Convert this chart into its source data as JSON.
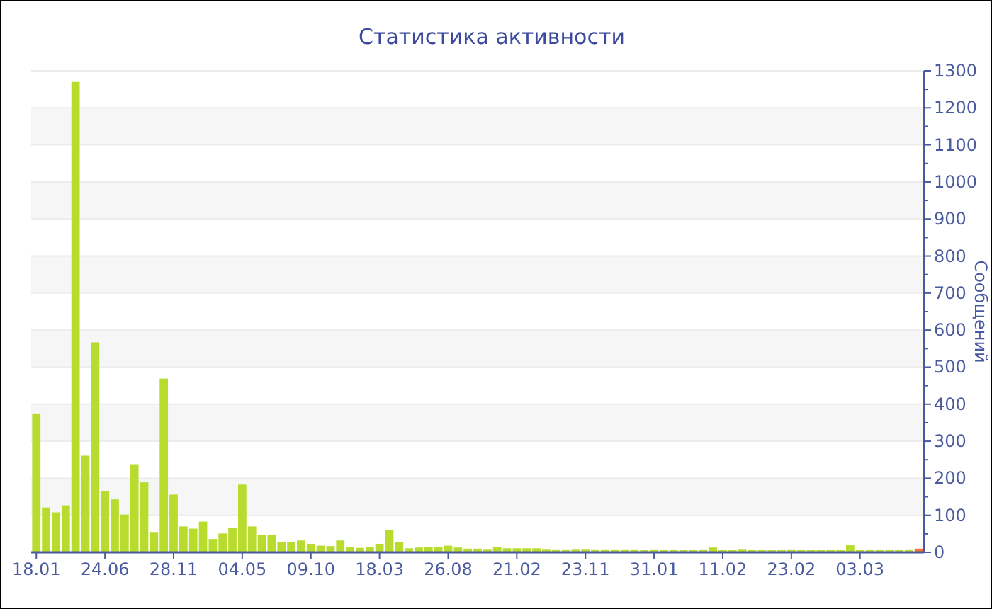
{
  "chart_data": {
    "type": "bar",
    "title": "Статистика активности",
    "ylabel": "Сообщений",
    "categories": [
      "18.01",
      null,
      null,
      null,
      null,
      null,
      null,
      "24.06",
      null,
      null,
      null,
      null,
      null,
      null,
      "28.11",
      null,
      null,
      null,
      null,
      null,
      null,
      "04.05",
      null,
      null,
      null,
      null,
      null,
      null,
      "09.10",
      null,
      null,
      null,
      null,
      null,
      null,
      "18.03",
      null,
      null,
      null,
      null,
      null,
      null,
      "26.08",
      null,
      null,
      null,
      null,
      null,
      null,
      "21.02",
      null,
      null,
      null,
      null,
      null,
      null,
      "23.11",
      null,
      null,
      null,
      null,
      null,
      null,
      "31.01",
      null,
      null,
      null,
      null,
      null,
      null,
      "11.02",
      null,
      null,
      null,
      null,
      null,
      null,
      "23.02",
      null,
      null,
      null,
      null,
      null,
      null,
      "03.03",
      null,
      null,
      null,
      null,
      null,
      null
    ],
    "values": [
      375,
      121,
      108,
      127,
      1270,
      261,
      567,
      166,
      143,
      102,
      238,
      189,
      55,
      469,
      156,
      70,
      64,
      83,
      36,
      51,
      66,
      183,
      70,
      48,
      48,
      28,
      28,
      32,
      23,
      18,
      17,
      32,
      15,
      12,
      15,
      23,
      60,
      27,
      11,
      13,
      14,
      15,
      18,
      13,
      10,
      10,
      9,
      14,
      11,
      11,
      11,
      11,
      9,
      8,
      8,
      9,
      9,
      8,
      8,
      8,
      8,
      8,
      7,
      8,
      7,
      7,
      7,
      7,
      8,
      13,
      7,
      7,
      9,
      7,
      7,
      7,
      7,
      8,
      7,
      7,
      7,
      7,
      7,
      19,
      7,
      7,
      7,
      7,
      7,
      8,
      10
    ],
    "colors": [
      "#b8dc2e",
      "#b8dc2e",
      "#b8dc2e",
      "#b8dc2e",
      "#b8dc2e",
      "#b8dc2e",
      "#b8dc2e",
      "#b8dc2e",
      "#b8dc2e",
      "#b8dc2e",
      "#b8dc2e",
      "#b8dc2e",
      "#b8dc2e",
      "#b8dc2e",
      "#b8dc2e",
      "#b8dc2e",
      "#b8dc2e",
      "#b8dc2e",
      "#b8dc2e",
      "#b8dc2e",
      "#b8dc2e",
      "#b8dc2e",
      "#b8dc2e",
      "#b8dc2e",
      "#b8dc2e",
      "#b8dc2e",
      "#b8dc2e",
      "#b8dc2e",
      "#b8dc2e",
      "#b8dc2e",
      "#b8dc2e",
      "#b8dc2e",
      "#b8dc2e",
      "#b8dc2e",
      "#b8dc2e",
      "#b8dc2e",
      "#b8dc2e",
      "#b8dc2e",
      "#b8dc2e",
      "#b8dc2e",
      "#b8dc2e",
      "#b8dc2e",
      "#b8dc2e",
      "#b8dc2e",
      "#b8dc2e",
      "#b8dc2e",
      "#b8dc2e",
      "#b8dc2e",
      "#b8dc2e",
      "#b8dc2e",
      "#b8dc2e",
      "#b8dc2e",
      "#b8dc2e",
      "#b8dc2e",
      "#b8dc2e",
      "#b8dc2e",
      "#b8dc2e",
      "#b8dc2e",
      "#b8dc2e",
      "#b8dc2e",
      "#b8dc2e",
      "#b8dc2e",
      "#b8dc2e",
      "#b8dc2e",
      "#b8dc2e",
      "#b8dc2e",
      "#b8dc2e",
      "#b8dc2e",
      "#b8dc2e",
      "#b8dc2e",
      "#b8dc2e",
      "#b8dc2e",
      "#b8dc2e",
      "#b8dc2e",
      "#b8dc2e",
      "#b8dc2e",
      "#b8dc2e",
      "#b8dc2e",
      "#b8dc2e",
      "#b8dc2e",
      "#b8dc2e",
      "#b8dc2e",
      "#b8dc2e",
      "#b8dc2e",
      "#b8dc2e",
      "#b8dc2e",
      "#b8dc2e",
      "#b8dc2e",
      "#b8dc2e",
      "#b8dc2e",
      "#f0743a"
    ],
    "ylim": [
      0,
      1300
    ],
    "yticks": [
      0,
      {
        "value": 50,
        "label": null
      },
      100,
      {
        "value": 150,
        "label": null
      },
      200,
      {
        "value": 250,
        "label": null
      },
      300,
      {
        "value": 350,
        "label": null
      },
      400,
      {
        "value": 450,
        "label": null
      },
      500,
      {
        "value": 550,
        "label": null
      },
      600,
      {
        "value": 650,
        "label": null
      },
      700,
      {
        "value": 750,
        "label": null
      },
      800,
      {
        "value": 850,
        "label": null
      },
      900,
      {
        "value": 950,
        "label": null
      },
      1000,
      {
        "value": 1050,
        "label": null
      },
      1100,
      {
        "value": 1150,
        "label": null
      },
      1200,
      {
        "value": 1250,
        "label": null
      },
      1300
    ],
    "grid": "y"
  }
}
